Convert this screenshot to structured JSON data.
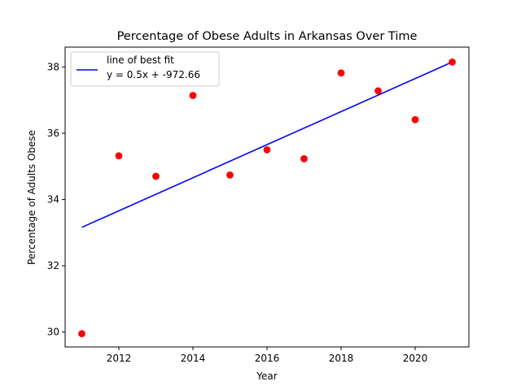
{
  "chart_data": {
    "type": "scatter",
    "title": "Percentage of Obese Adults in Arkansas Over Time",
    "xlabel": "Year",
    "ylabel": "Percentage of Adults Obese",
    "xlim": [
      2010.55,
      2021.45
    ],
    "ylim": [
      29.55,
      38.6
    ],
    "xticks": [
      2012,
      2014,
      2016,
      2018,
      2020
    ],
    "yticks": [
      30,
      32,
      34,
      36,
      38
    ],
    "grid": false,
    "legend_position": "top-left",
    "series": [
      {
        "type": "scatter",
        "color": "#ff0000",
        "points": [
          {
            "x": 2011,
            "y": 29.95
          },
          {
            "x": 2012,
            "y": 35.32
          },
          {
            "x": 2013,
            "y": 34.7
          },
          {
            "x": 2014,
            "y": 37.14
          },
          {
            "x": 2015,
            "y": 34.74
          },
          {
            "x": 2016,
            "y": 35.5
          },
          {
            "x": 2017,
            "y": 35.23
          },
          {
            "x": 2018,
            "y": 37.82
          },
          {
            "x": 2019,
            "y": 37.28
          },
          {
            "x": 2020,
            "y": 36.41
          },
          {
            "x": 2021,
            "y": 38.15
          }
        ]
      },
      {
        "type": "line",
        "name": "line of best fit",
        "legend_equation": "y = 0.5x + -972.66",
        "color": "#0000ff",
        "points": [
          {
            "x": 2011,
            "y": 33.16
          },
          {
            "x": 2021,
            "y": 38.15
          }
        ]
      }
    ]
  }
}
